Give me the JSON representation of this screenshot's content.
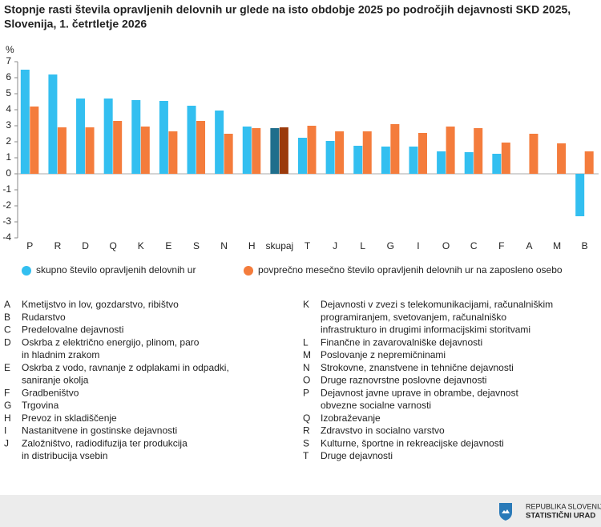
{
  "chart_data": {
    "type": "bar",
    "title": [
      "Stopnje rasti števila opravljenih delovnih ur glede na isto obdobje 2025 po področjih dejavnosti SKD 2025,",
      "Slovenija, 1. četrtletje 2026"
    ],
    "y_unit_label": "%",
    "categories": [
      "P",
      "R",
      "D",
      "Q",
      "K",
      "E",
      "S",
      "N",
      "H",
      "skupaj",
      "T",
      "J",
      "L",
      "G",
      "I",
      "O",
      "C",
      "F",
      "A",
      "M",
      "B"
    ],
    "series": [
      {
        "name": "skupno število opravljenih delovnih ur",
        "color": "#33bff0",
        "colors": [
          "#33bff0",
          "#33bff0",
          "#33bff0",
          "#33bff0",
          "#33bff0",
          "#33bff0",
          "#33bff0",
          "#33bff0",
          "#33bff0",
          "#1f6e8c",
          "#33bff0",
          "#33bff0",
          "#33bff0",
          "#33bff0",
          "#33bff0",
          "#33bff0",
          "#33bff0",
          "#33bff0",
          "#33bff0",
          "#33bff0",
          "#33bff0"
        ],
        "values": [
          6.5,
          6.2,
          4.7,
          4.7,
          4.6,
          4.55,
          4.25,
          3.95,
          2.95,
          2.85,
          2.25,
          2.05,
          1.75,
          1.7,
          1.7,
          1.4,
          1.35,
          1.25,
          null,
          null,
          -2.65
        ]
      },
      {
        "name": "povprečno mesečno število opravljenih delovnih ur na zaposleno osebo",
        "color": "#f47c3c",
        "colors": [
          "#f47c3c",
          "#f47c3c",
          "#f47c3c",
          "#f47c3c",
          "#f47c3c",
          "#f47c3c",
          "#f47c3c",
          "#f47c3c",
          "#f47c3c",
          "#9b3a0b",
          "#f47c3c",
          "#f47c3c",
          "#f47c3c",
          "#f47c3c",
          "#f47c3c",
          "#f47c3c",
          "#f47c3c",
          "#f47c3c",
          "#f47c3c",
          "#f47c3c",
          "#f47c3c"
        ],
        "values": [
          4.2,
          2.9,
          2.9,
          3.3,
          2.95,
          2.65,
          3.3,
          2.5,
          2.85,
          2.9,
          3.0,
          2.65,
          2.65,
          3.1,
          2.55,
          2.95,
          2.85,
          1.95,
          2.5,
          1.9,
          1.4
        ]
      }
    ],
    "ylim": [
      -4,
      7
    ],
    "yticks": [
      -4,
      -3,
      -2,
      -1,
      0,
      1,
      2,
      3,
      4,
      5,
      6,
      7
    ],
    "grid": false,
    "legend": "bottom"
  },
  "glossary": {
    "left": [
      {
        "code": "A",
        "lines": [
          "Kmetijstvo in lov, gozdarstvo, ribištvo"
        ]
      },
      {
        "code": "B",
        "lines": [
          "Rudarstvo"
        ]
      },
      {
        "code": "C",
        "lines": [
          "Predelovalne dejavnosti"
        ]
      },
      {
        "code": "D",
        "lines": [
          "Oskrba z električno energijo, plinom, paro",
          "in hladnim zrakom"
        ]
      },
      {
        "code": "E",
        "lines": [
          "Oskrba z vodo, ravnanje z odplakami in odpadki,",
          "saniranje okolja"
        ]
      },
      {
        "code": "F",
        "lines": [
          "Gradbeništvo"
        ]
      },
      {
        "code": "G",
        "lines": [
          "Trgovina"
        ]
      },
      {
        "code": "H",
        "lines": [
          "Prevoz in skladiščenje"
        ]
      },
      {
        "code": "I",
        "lines": [
          "Nastanitvene in gostinske dejavnosti"
        ]
      },
      {
        "code": "J",
        "lines": [
          "Založništvo, radiodifuzija ter produkcija",
          "in distribucija vsebin"
        ]
      }
    ],
    "right": [
      {
        "code": "K",
        "lines": [
          "Dejavnosti v zvezi s telekomunikacijami, računalniškim",
          "programiranjem, svetovanjem, računalniško",
          "infrastrukturo in drugimi informacijskimi storitvami"
        ]
      },
      {
        "code": "L",
        "lines": [
          "Finančne in zavarovalniške dejavnosti"
        ]
      },
      {
        "code": "M",
        "lines": [
          "Poslovanje z nepremičninami"
        ]
      },
      {
        "code": "N",
        "lines": [
          "Strokovne, znanstvene in tehnične dejavnosti"
        ]
      },
      {
        "code": "O",
        "lines": [
          "Druge raznovrstne poslovne dejavnosti"
        ]
      },
      {
        "code": "P",
        "lines": [
          "Dejavnost javne uprave in obrambe, dejavnost",
          "obvezne socialne varnosti"
        ]
      },
      {
        "code": "Q",
        "lines": [
          "Izobraževanje"
        ]
      },
      {
        "code": "R",
        "lines": [
          "Zdravstvo in socialno varstvo"
        ]
      },
      {
        "code": "S",
        "lines": [
          "Kulturne, športne in rekreacijske dejavnosti"
        ]
      },
      {
        "code": "T",
        "lines": [
          "Druge dejavnosti"
        ]
      }
    ]
  },
  "footer": {
    "logo_lines": [
      "REPUBLIKA SLOVENIJA",
      "STATISTIČNI URAD"
    ]
  }
}
